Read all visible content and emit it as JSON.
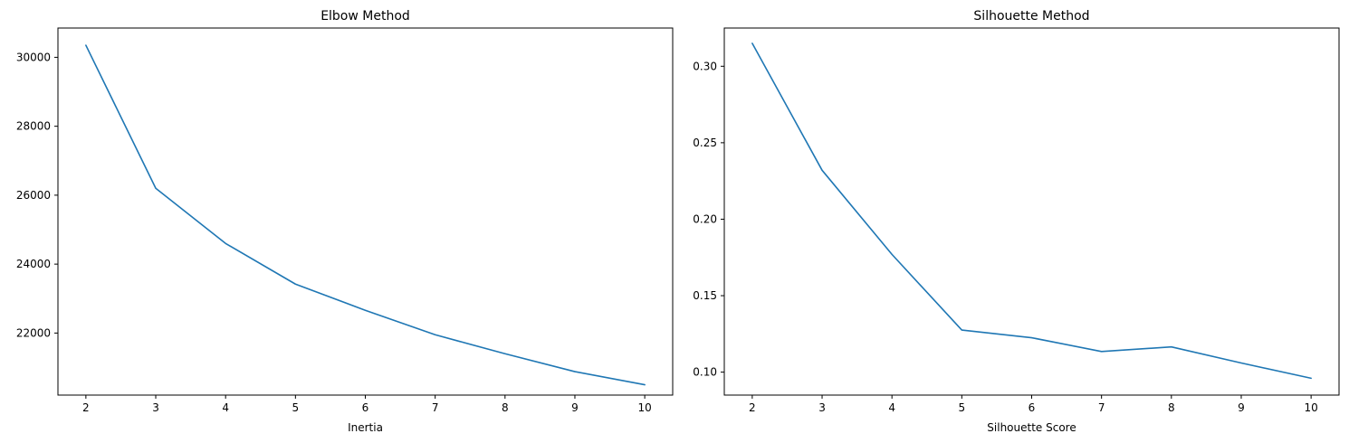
{
  "chart_data": [
    {
      "type": "line",
      "title": "Elbow Method",
      "xlabel": "Inertia",
      "ylabel": "",
      "x": [
        2,
        3,
        4,
        5,
        6,
        7,
        8,
        9,
        10
      ],
      "series": [
        {
          "values": [
            30350,
            26200,
            24600,
            23420,
            22660,
            21950,
            21400,
            20880,
            20500
          ],
          "color": "#1f77b4"
        }
      ],
      "xlim": [
        1.6,
        10.4
      ],
      "ylim": [
        20200,
        30850
      ],
      "xticks": [
        2,
        3,
        4,
        5,
        6,
        7,
        8,
        9,
        10
      ],
      "yticks": [
        22000,
        24000,
        26000,
        28000,
        30000
      ],
      "grid": false
    },
    {
      "type": "line",
      "title": "Silhouette Method",
      "xlabel": "Silhouette Score",
      "ylabel": "",
      "x": [
        2,
        3,
        4,
        5,
        6,
        7,
        8,
        9,
        10
      ],
      "series": [
        {
          "values": [
            0.315,
            0.232,
            0.177,
            0.1275,
            0.1225,
            0.1135,
            0.1165,
            0.106,
            0.096
          ],
          "color": "#1f77b4"
        }
      ],
      "xlim": [
        1.6,
        10.4
      ],
      "ylim": [
        0.085,
        0.325
      ],
      "xticks": [
        2,
        3,
        4,
        5,
        6,
        7,
        8,
        9,
        10
      ],
      "yticks": [
        0.1,
        0.15,
        0.2,
        0.25,
        0.3
      ],
      "ytick_labels": [
        "0.10",
        "0.15",
        "0.20",
        "0.25",
        "0.30"
      ],
      "grid": false
    }
  ]
}
